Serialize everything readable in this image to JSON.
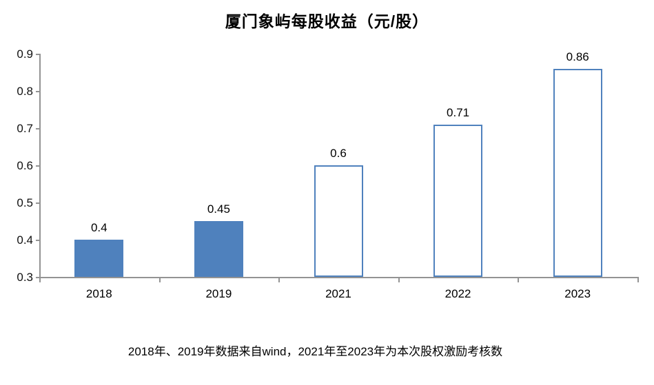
{
  "chart_data": {
    "type": "bar",
    "title": "厦门象屿每股收益（元/股）",
    "categories": [
      "2018",
      "2019",
      "2021",
      "2022",
      "2023"
    ],
    "values": [
      0.4,
      0.45,
      0.6,
      0.71,
      0.86
    ],
    "value_labels": [
      "0.4",
      "0.45",
      "0.6",
      "0.71",
      "0.86"
    ],
    "bar_styles": [
      "solid",
      "solid",
      "outline",
      "outline",
      "outline"
    ],
    "ylim": [
      0.3,
      0.9
    ],
    "ytick_labels": [
      "0.3",
      "0.4",
      "0.5",
      "0.6",
      "0.7",
      "0.8",
      "0.9"
    ],
    "grid": "off",
    "legend": "none",
    "colors": {
      "bar_fill": "#4f81bd",
      "bar_outline": "#4f81bd",
      "axis_line": "#939393",
      "text": "#000000"
    },
    "footnote": "2018年、2019年数据来自wind，2021年至2023年为本次股权激励考核数"
  }
}
